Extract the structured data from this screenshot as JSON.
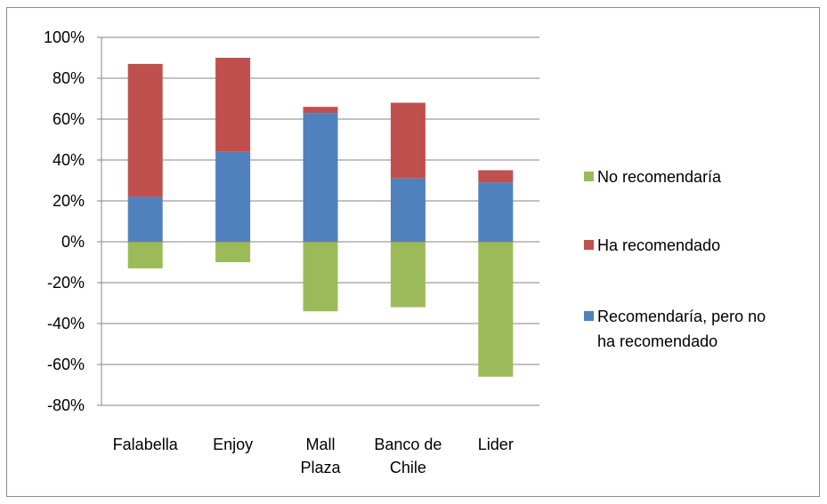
{
  "chart_data": {
    "type": "bar",
    "stacked": true,
    "categories": [
      [
        "Falabella"
      ],
      [
        "Enjoy"
      ],
      [
        "Mall",
        "Plaza"
      ],
      [
        "Banco de",
        "Chile"
      ],
      [
        "Lider"
      ]
    ],
    "series": [
      {
        "name": "No recomendaría",
        "color": "#9bbb59",
        "values": [
          -13,
          -10,
          -34,
          -32,
          -66
        ]
      },
      {
        "name": "Ha recomendado",
        "color": "#c0504d",
        "values": [
          65,
          46,
          3,
          37,
          6
        ]
      },
      {
        "name": "Recomendaría, pero no ha recomendado",
        "color": "#4f81bd",
        "values": [
          22,
          44,
          63,
          31,
          29
        ]
      }
    ],
    "stack_order": [
      "Recomendaría, pero no ha recomendado",
      "Ha recomendado"
    ],
    "ylim": [
      -80,
      100
    ],
    "yticks": [
      -80,
      -60,
      -40,
      -20,
      0,
      20,
      40,
      60,
      80,
      100
    ],
    "ytick_labels": [
      "-80%",
      "-60%",
      "-40%",
      "-20%",
      "0%",
      "20%",
      "40%",
      "60%",
      "80%",
      "100%"
    ],
    "grid": true,
    "legend_position": "right",
    "legend": [
      {
        "lines": [
          "No recomendaría"
        ],
        "color": "#9bbb59"
      },
      {
        "lines": [
          "Ha recomendado"
        ],
        "color": "#c0504d"
      },
      {
        "lines": [
          "Recomendaría, pero no",
          "ha recomendado"
        ],
        "color": "#4f81bd"
      }
    ]
  }
}
